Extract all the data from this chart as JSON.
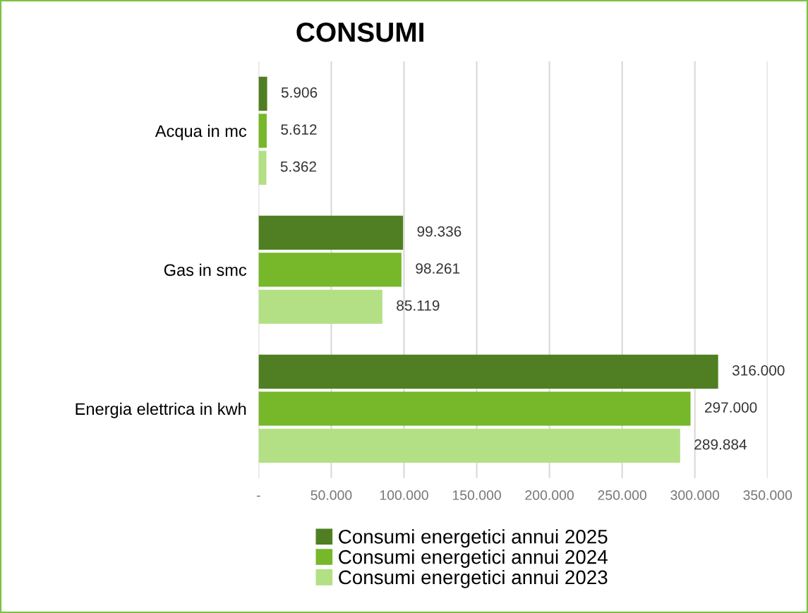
{
  "chart_data": {
    "type": "bar",
    "orientation": "horizontal",
    "title": "CONSUMI",
    "categories": [
      "Acqua in mc",
      "Gas in smc",
      "Energia elettrica in kwh"
    ],
    "series": [
      {
        "name": "Consumi energetici annui 2025",
        "color": "#4f7f22",
        "values": [
          5906,
          99336,
          316000
        ],
        "value_labels": [
          "5.906",
          "99.336",
          "316.000"
        ]
      },
      {
        "name": "Consumi energetici annui 2024",
        "color": "#76b82a",
        "values": [
          5612,
          98261,
          297000
        ],
        "value_labels": [
          "5.612",
          "98.261",
          "297.000"
        ]
      },
      {
        "name": "Consumi energetici annui 2023",
        "color": "#b3e085",
        "values": [
          5362,
          85119,
          289884
        ],
        "value_labels": [
          "5.362",
          "85.119",
          "289.884"
        ]
      }
    ],
    "xlim": [
      0,
      350000
    ],
    "xticks": [
      {
        "value": 0,
        "label": "-"
      },
      {
        "value": 50000,
        "label": "50.000"
      },
      {
        "value": 100000,
        "label": "100.000"
      },
      {
        "value": 150000,
        "label": "150.000"
      },
      {
        "value": 200000,
        "label": "200.000"
      },
      {
        "value": 250000,
        "label": "250.000"
      },
      {
        "value": 300000,
        "label": "300.000"
      },
      {
        "value": 350000,
        "label": "350.000"
      }
    ],
    "grid": "x",
    "legend": "bottom"
  }
}
